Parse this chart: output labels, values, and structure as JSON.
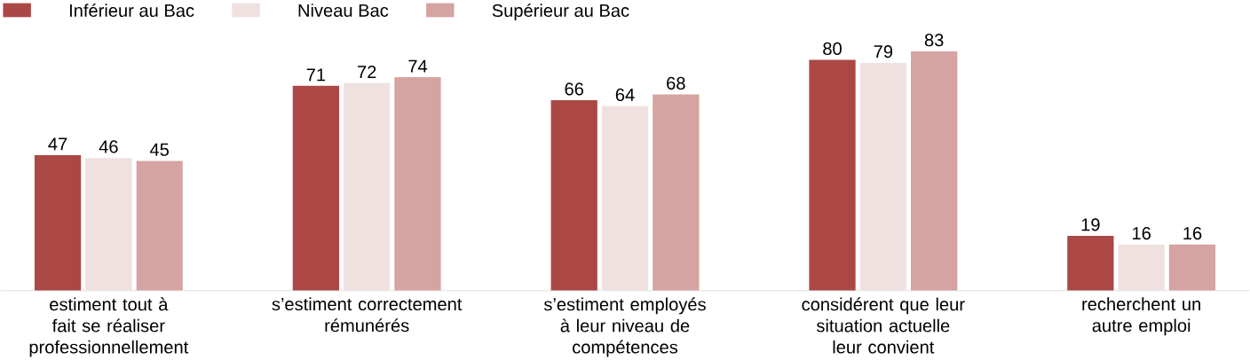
{
  "chart_data": {
    "type": "bar",
    "categories": [
      "estiment tout à fait se réaliser professionnellement",
      "s’estiment correctement rémunérés",
      "s’estiment employés à leur niveau de compétences",
      "considérent que leur situation actuelle leur convient",
      "recherchent un autre emploi"
    ],
    "series": [
      {
        "name": "Inférieur au Bac",
        "color": "#ab4846",
        "values": [
          47,
          71,
          66,
          80,
          19
        ]
      },
      {
        "name": "Niveau Bac",
        "color": "#f0e1e1",
        "values": [
          46,
          72,
          64,
          79,
          16
        ]
      },
      {
        "name": "Supérieur au Bac",
        "color": "#d4a3a2",
        "values": [
          45,
          74,
          68,
          83,
          16
        ]
      }
    ],
    "data_labels": true,
    "legend": "top left",
    "grid": false
  }
}
